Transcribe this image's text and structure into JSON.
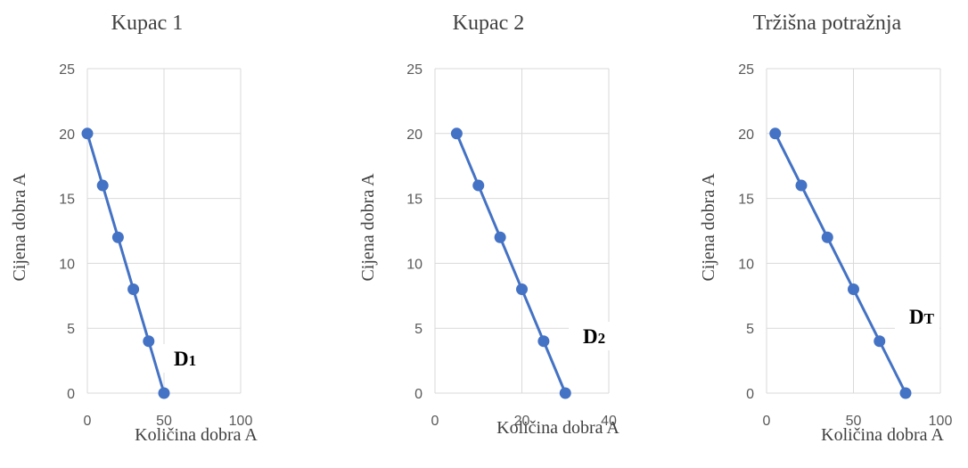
{
  "chart_data": [
    {
      "type": "scatter",
      "title": "Kupac 1",
      "xlabel": "Količina dobra A",
      "ylabel": "Cijena dobra A",
      "xlim": [
        0,
        100
      ],
      "ylim": [
        0,
        25
      ],
      "xticks": [
        "0",
        "50",
        "100"
      ],
      "yticks": [
        "0",
        "5",
        "10",
        "15",
        "20",
        "25"
      ],
      "grid": true,
      "color": "#4472c4",
      "annotation": {
        "main": "D",
        "sub": "1"
      },
      "series": [
        {
          "x": [
            0,
            10,
            20,
            30,
            40,
            50
          ],
          "y": [
            20,
            16,
            12,
            8,
            4,
            0
          ]
        }
      ]
    },
    {
      "type": "scatter",
      "title": "Kupac 2",
      "xlabel": "Količina dobra A",
      "ylabel": "Cijena dobra A",
      "xlim": [
        0,
        40
      ],
      "ylim": [
        0,
        25
      ],
      "xticks": [
        "0",
        "20",
        "40"
      ],
      "yticks": [
        "0",
        "5",
        "10",
        "15",
        "20",
        "25"
      ],
      "grid": true,
      "color": "#4472c4",
      "annotation": {
        "main": "D",
        "sub": "2"
      },
      "series": [
        {
          "x": [
            5,
            10,
            15,
            20,
            25,
            30
          ],
          "y": [
            20,
            16,
            12,
            8,
            4,
            0
          ]
        }
      ]
    },
    {
      "type": "scatter",
      "title": "Tržišna potražnja",
      "xlabel": "Količina dobra A",
      "ylabel": "Cijena dobra A",
      "xlim": [
        0,
        100
      ],
      "ylim": [
        0,
        25
      ],
      "xticks": [
        "0",
        "50",
        "100"
      ],
      "yticks": [
        "0",
        "5",
        "10",
        "15",
        "20",
        "25"
      ],
      "grid": true,
      "color": "#4472c4",
      "annotation": {
        "main": "D",
        "sub": "T"
      },
      "series": [
        {
          "x": [
            5,
            20,
            35,
            50,
            65,
            80
          ],
          "y": [
            20,
            16,
            12,
            8,
            4,
            0
          ]
        }
      ]
    }
  ]
}
